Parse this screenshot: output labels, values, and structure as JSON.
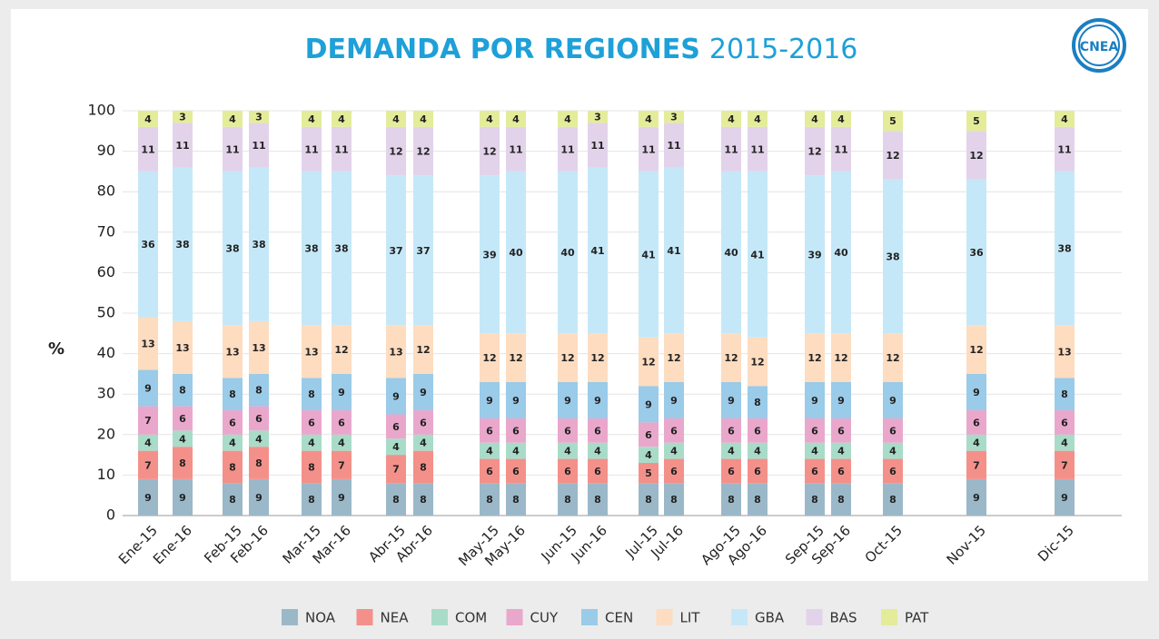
{
  "chart_data": {
    "type": "stacked_bar",
    "title": "DEMANDA POR REGIONES",
    "subtitle": "2015-2016",
    "logo": "CNEA",
    "ylabel": "%",
    "categories": [
      "Ene-15",
      "Ene-16",
      "Feb-15",
      "Feb-16",
      "Mar-15",
      "Mar-16",
      "Abr-15",
      "Abr-16",
      "May-15",
      "May-16",
      "Jun-15",
      "Jun-16",
      "Jul-15",
      "Jul-16",
      "Ago-15",
      "Ago-16",
      "Sep-15",
      "Sep-16",
      "Oct-15",
      "Nov-15",
      "Dic-15"
    ],
    "series": [
      {
        "name": "NOA",
        "color": "#9bb8c9",
        "values": [
          9,
          9,
          8,
          9,
          8,
          9,
          8,
          8,
          8,
          8,
          8,
          8,
          8,
          8,
          8,
          8,
          8,
          8,
          8,
          9,
          9
        ]
      },
      {
        "name": "NEA",
        "color": "#f4908a",
        "values": [
          7,
          8,
          8,
          8,
          8,
          7,
          7,
          8,
          6,
          6,
          6,
          6,
          5,
          6,
          6,
          6,
          6,
          6,
          6,
          7,
          7
        ]
      },
      {
        "name": "COM",
        "color": "#a8dcc8",
        "values": [
          4,
          4,
          4,
          4,
          4,
          4,
          4,
          4,
          4,
          4,
          4,
          4,
          4,
          4,
          4,
          4,
          4,
          4,
          4,
          4,
          4
        ]
      },
      {
        "name": "CUY",
        "color": "#eaa7cc",
        "values": [
          7,
          6,
          6,
          6,
          6,
          6,
          6,
          6,
          6,
          6,
          6,
          6,
          6,
          6,
          6,
          6,
          6,
          6,
          6,
          6,
          6
        ]
      },
      {
        "name": "CEN",
        "color": "#9acbe8",
        "values": [
          9,
          8,
          8,
          8,
          8,
          9,
          9,
          9,
          9,
          9,
          9,
          9,
          9,
          9,
          9,
          8,
          9,
          9,
          9,
          9,
          8
        ]
      },
      {
        "name": "LIT",
        "color": "#fddcc0",
        "values": [
          13,
          13,
          13,
          13,
          13,
          12,
          13,
          12,
          12,
          12,
          12,
          12,
          12,
          12,
          12,
          12,
          12,
          12,
          12,
          12,
          13
        ]
      },
      {
        "name": "GBA",
        "color": "#c5e8f8",
        "values": [
          36,
          38,
          38,
          38,
          38,
          38,
          37,
          37,
          39,
          40,
          40,
          41,
          41,
          41,
          40,
          41,
          39,
          40,
          38,
          36,
          38
        ]
      },
      {
        "name": "BAS",
        "color": "#e2d3ea",
        "values": [
          11,
          11,
          11,
          11,
          11,
          11,
          12,
          12,
          12,
          11,
          11,
          11,
          11,
          11,
          11,
          11,
          12,
          11,
          12,
          12,
          11
        ]
      },
      {
        "name": "PAT",
        "color": "#e4ec9a",
        "values": [
          4,
          3,
          4,
          3,
          4,
          4,
          4,
          4,
          4,
          4,
          4,
          3,
          4,
          3,
          4,
          4,
          4,
          4,
          5,
          5,
          4
        ]
      }
    ],
    "ylim": [
      0,
      100
    ],
    "yticks": [
      0,
      10,
      20,
      30,
      40,
      50,
      60,
      70,
      80,
      90,
      100
    ],
    "grid": true
  }
}
